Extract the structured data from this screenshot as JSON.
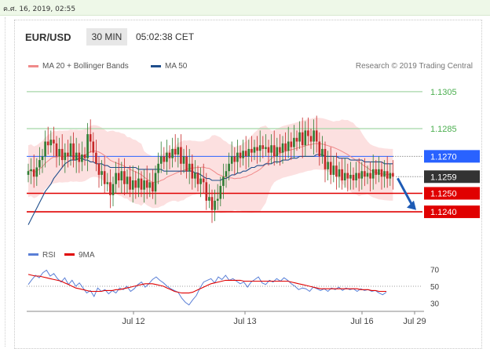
{
  "timestamp": "ค.ศ. 16, 2019, 02:55",
  "header": {
    "symbol": "EUR/USD",
    "timeframe": "30 MIN",
    "clock": "05:02:38 CET"
  },
  "legend": [
    {
      "label": "MA 20 + Bollinger Bands",
      "color": "#f08a8a"
    },
    {
      "label": "MA 50",
      "color": "#1f4e8c"
    }
  ],
  "research": "Research © 2019 Trading Central",
  "colors": {
    "up": "#2e7d32",
    "down": "#c62828",
    "resistance": "#a5d6a7",
    "pivot": "#2962ff",
    "support": "#e00000",
    "band": "#fbd5d5"
  },
  "chart_data": [
    {
      "type": "candlestick",
      "x_ticks": [
        "Jul 12",
        "Jul 13",
        "Jul 16",
        "Jul 29"
      ],
      "ylim": [
        1.1229,
        1.1313
      ],
      "levels": [
        {
          "label": "1.1305",
          "value": 1.1305,
          "kind": "resistance"
        },
        {
          "label": "1.1285",
          "value": 1.1285,
          "kind": "resistance"
        },
        {
          "label": "1.1270",
          "value": 1.127,
          "kind": "pivot"
        },
        {
          "label": "1.1259",
          "value": 1.1259,
          "kind": "last"
        },
        {
          "label": "1.1250",
          "value": 1.125,
          "kind": "support"
        },
        {
          "label": "1.1240",
          "value": 1.124,
          "kind": "support"
        }
      ],
      "closes": [
        1.1262,
        1.1263,
        1.1259,
        1.1264,
        1.1268,
        1.127,
        1.1278,
        1.1276,
        1.1279,
        1.1277,
        1.127,
        1.1274,
        1.1268,
        1.1272,
        1.127,
        1.1277,
        1.1268,
        1.1272,
        1.1267,
        1.1271,
        1.1269,
        1.1282,
        1.1278,
        1.1272,
        1.1266,
        1.126,
        1.1262,
        1.1255,
        1.1256,
        1.1249,
        1.1255,
        1.1261,
        1.1257,
        1.1262,
        1.1255,
        1.1259,
        1.1252,
        1.1257,
        1.1253,
        1.1258,
        1.1252,
        1.1257,
        1.1253,
        1.1256,
        1.1251,
        1.1261,
        1.1266,
        1.127,
        1.1267,
        1.1272,
        1.1269,
        1.1274,
        1.1271,
        1.1275,
        1.1266,
        1.127,
        1.1262,
        1.1266,
        1.1258,
        1.1261,
        1.1255,
        1.1258,
        1.1256,
        1.1246,
        1.1248,
        1.1241,
        1.1246,
        1.1247,
        1.1254,
        1.1259,
        1.1262,
        1.1266,
        1.127,
        1.1267,
        1.1272,
        1.1269,
        1.1273,
        1.127,
        1.1274,
        1.1272,
        1.1275,
        1.1273,
        1.1276,
        1.1274,
        1.1275,
        1.1272,
        1.1276,
        1.127,
        1.1275,
        1.1272,
        1.1277,
        1.1273,
        1.1278,
        1.1275,
        1.128,
        1.1278,
        1.1283,
        1.1276,
        1.1284,
        1.1281,
        1.1278,
        1.1284,
        1.1278,
        1.127,
        1.1274,
        1.1263,
        1.1267,
        1.126,
        1.1265,
        1.1259,
        1.1263,
        1.1257,
        1.1261,
        1.1258,
        1.126,
        1.1257,
        1.1261,
        1.1258,
        1.1262,
        1.1259,
        1.1261,
        1.1258,
        1.1263,
        1.126,
        1.1263,
        1.1259,
        1.1262,
        1.1258,
        1.1261,
        1.1259
      ],
      "ma50": [
        1.1233,
        1.1236,
        1.1239,
        1.1242,
        1.1245,
        1.1248,
        1.1251,
        1.1253,
        1.1255,
        1.1258,
        1.126,
        1.1262,
        1.1264,
        1.1266,
        1.1267,
        1.1268,
        1.1268,
        1.1268,
        1.1269,
        1.1269,
        1.1268,
        1.1268,
        1.1267,
        1.1267,
        1.1266,
        1.1266,
        1.1266,
        1.1265,
        1.1265,
        1.1264,
        1.1264,
        1.1264,
        1.1264,
        1.1264,
        1.1264,
        1.1264,
        1.1264,
        1.1264,
        1.1264,
        1.1263,
        1.1263,
        1.1263,
        1.1263,
        1.1263,
        1.1263,
        1.1263,
        1.1263,
        1.1263,
        1.1262,
        1.1262,
        1.1262,
        1.1262,
        1.1262,
        1.1262,
        1.1262,
        1.1262,
        1.1262,
        1.1262,
        1.1262,
        1.1261,
        1.1261,
        1.126,
        1.1259,
        1.1258,
        1.1258,
        1.1257,
        1.1257,
        1.1257,
        1.1257,
        1.1258,
        1.1258,
        1.1259,
        1.126,
        1.126,
        1.1261,
        1.1261,
        1.1262,
        1.1262,
        1.1263,
        1.1264,
        1.1264,
        1.1265,
        1.1265,
        1.1265,
        1.1266,
        1.1266,
        1.1266,
        1.1267,
        1.1267,
        1.1267,
        1.1268,
        1.1268,
        1.1268,
        1.1269,
        1.1269,
        1.1269,
        1.127,
        1.127,
        1.127,
        1.127,
        1.127,
        1.127,
        1.1271,
        1.1271,
        1.1271,
        1.127,
        1.127,
        1.127,
        1.127,
        1.127,
        1.1269,
        1.1269,
        1.1269,
        1.1269,
        1.1268,
        1.1268,
        1.1268,
        1.1268,
        1.1268,
        1.1267,
        1.1267,
        1.1267,
        1.1267,
        1.1267,
        1.1267,
        1.1267,
        1.1266,
        1.1266,
        1.1266,
        1.1266
      ]
    },
    {
      "type": "line",
      "legend": [
        {
          "label": "RSI",
          "color": "#5a7fd6"
        },
        {
          "label": "9MA",
          "color": "#e00000"
        }
      ],
      "ylim": [
        25,
        75
      ],
      "y_ticks": [
        70,
        50,
        30
      ],
      "rsi": [
        52,
        58,
        63,
        60,
        66,
        69,
        62,
        65,
        59,
        55,
        60,
        52,
        57,
        50,
        54,
        48,
        42,
        45,
        38,
        48,
        44,
        46,
        41,
        45,
        42,
        48,
        46,
        50,
        44,
        47,
        52,
        55,
        49,
        53,
        58,
        61,
        57,
        54,
        50,
        47,
        45,
        43,
        36,
        31,
        28,
        34,
        39,
        48,
        55,
        57,
        59,
        54,
        61,
        58,
        63,
        57,
        59,
        56,
        53,
        55,
        49,
        55,
        58,
        61,
        54,
        52,
        57,
        55,
        59,
        56,
        60,
        57,
        53,
        50,
        46,
        48,
        47,
        44,
        49,
        47,
        45,
        47,
        44,
        48,
        46,
        49,
        45,
        48,
        46,
        47,
        44,
        47,
        45,
        46,
        44,
        45,
        42,
        40,
        43
      ],
      "ma9": [
        64,
        63,
        62,
        62,
        61,
        60,
        59,
        58,
        57,
        56,
        54,
        52,
        50,
        48,
        47,
        46,
        45,
        44,
        44,
        44,
        44,
        45,
        45,
        45,
        46,
        46,
        47,
        48,
        49,
        50,
        51,
        52,
        53,
        53,
        53,
        52,
        51,
        50,
        48,
        46,
        44,
        43,
        42,
        42,
        42,
        43,
        45,
        47,
        49,
        51,
        53,
        54,
        55,
        56,
        57,
        57,
        57,
        57,
        57,
        56,
        56,
        56,
        56,
        56,
        56,
        56,
        56,
        56,
        56,
        56,
        56,
        56,
        55,
        54,
        53,
        52,
        51,
        50,
        49,
        48,
        47,
        47,
        47,
        47,
        47,
        47,
        47,
        47,
        47,
        47,
        47,
        46,
        46,
        46,
        45,
        45,
        44,
        44,
        44
      ]
    }
  ]
}
